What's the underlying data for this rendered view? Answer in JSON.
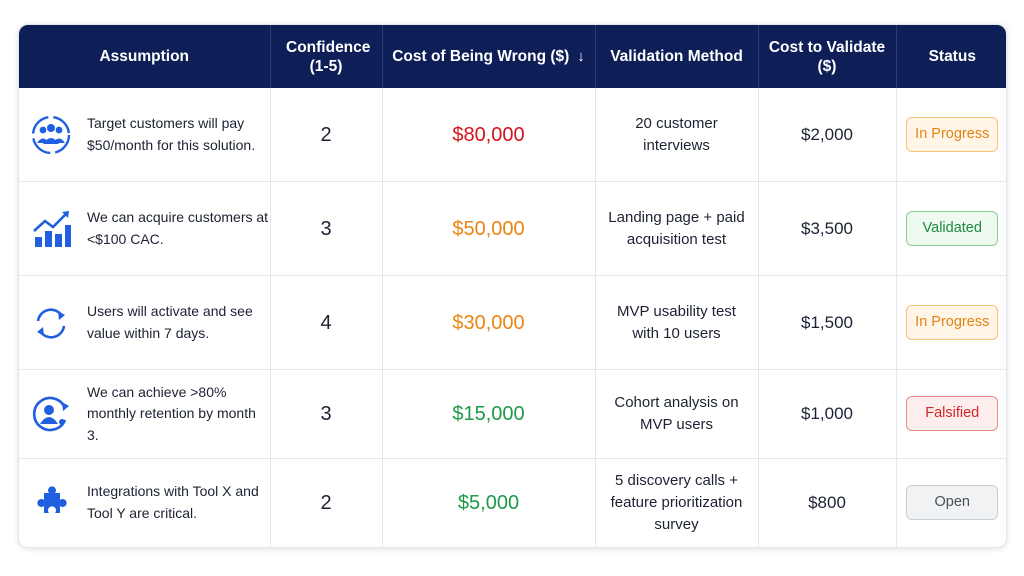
{
  "headers": {
    "assumption": "Assumption",
    "confidence": "Confidence (1-5)",
    "cost_wrong": "Cost of Being Wrong ($)",
    "sort_arrow": "↓",
    "validation_method": "Validation Method",
    "cost_validate": "Cost to Validate ($)",
    "status": "Status"
  },
  "colors": {
    "header_bg": "#0e1f57",
    "icon_blue": "#1f5fe0",
    "cost_red": "#d4141c",
    "cost_orange": "#ec8412",
    "cost_green": "#1e9a48"
  },
  "rows": [
    {
      "icon": "customer-group-target-icon",
      "assumption": "Target customers will pay $50/month for this solution.",
      "confidence": "2",
      "cost_wrong": "$80,000",
      "cost_color": "#d4141c",
      "validation_method": "20 customer interviews",
      "cost_validate": "$2,000",
      "status": "In Progress",
      "status_style": {
        "bg": "#fff6e8",
        "border": "#f5c27a",
        "fg": "#e08416"
      }
    },
    {
      "icon": "growth-bar-chart-icon",
      "assumption": "We can acquire customers at <$100 CAC.",
      "confidence": "3",
      "cost_wrong": "$50,000",
      "cost_color": "#ec8412",
      "validation_method": "Landing page + paid acquisition test",
      "cost_validate": "$3,500",
      "status": "Validated",
      "status_style": {
        "bg": "#eef9f0",
        "border": "#86cf97",
        "fg": "#1e8a3f"
      }
    },
    {
      "icon": "activation-cycle-icon",
      "assumption": "Users will activate and see value within 7 days.",
      "confidence": "4",
      "cost_wrong": "$30,000",
      "cost_color": "#ec8412",
      "validation_method": "MVP usability test with 10 users",
      "cost_validate": "$1,500",
      "status": "In Progress",
      "status_style": {
        "bg": "#fff6e8",
        "border": "#f5c27a",
        "fg": "#e08416"
      }
    },
    {
      "icon": "user-retention-icon",
      "assumption": "We can achieve >80% monthly retention by month 3.",
      "confidence": "3",
      "cost_wrong": "$15,000",
      "cost_color": "#1e9a48",
      "validation_method": "Cohort analysis on MVP users",
      "cost_validate": "$1,000",
      "status": "Falsified",
      "status_style": {
        "bg": "#fdeeee",
        "border": "#ee8a8a",
        "fg": "#d42424"
      }
    },
    {
      "icon": "integration-puzzle-icon",
      "assumption": "Integrations with Tool X and Tool Y are critical.",
      "confidence": "2",
      "cost_wrong": "$5,000",
      "cost_color": "#1e9a48",
      "validation_method": "5 discovery calls + feature prioritization survey",
      "cost_validate": "$800",
      "status": "Open",
      "status_style": {
        "bg": "#f1f2f4",
        "border": "#c9ccd2",
        "fg": "#4a4f5a"
      }
    }
  ]
}
